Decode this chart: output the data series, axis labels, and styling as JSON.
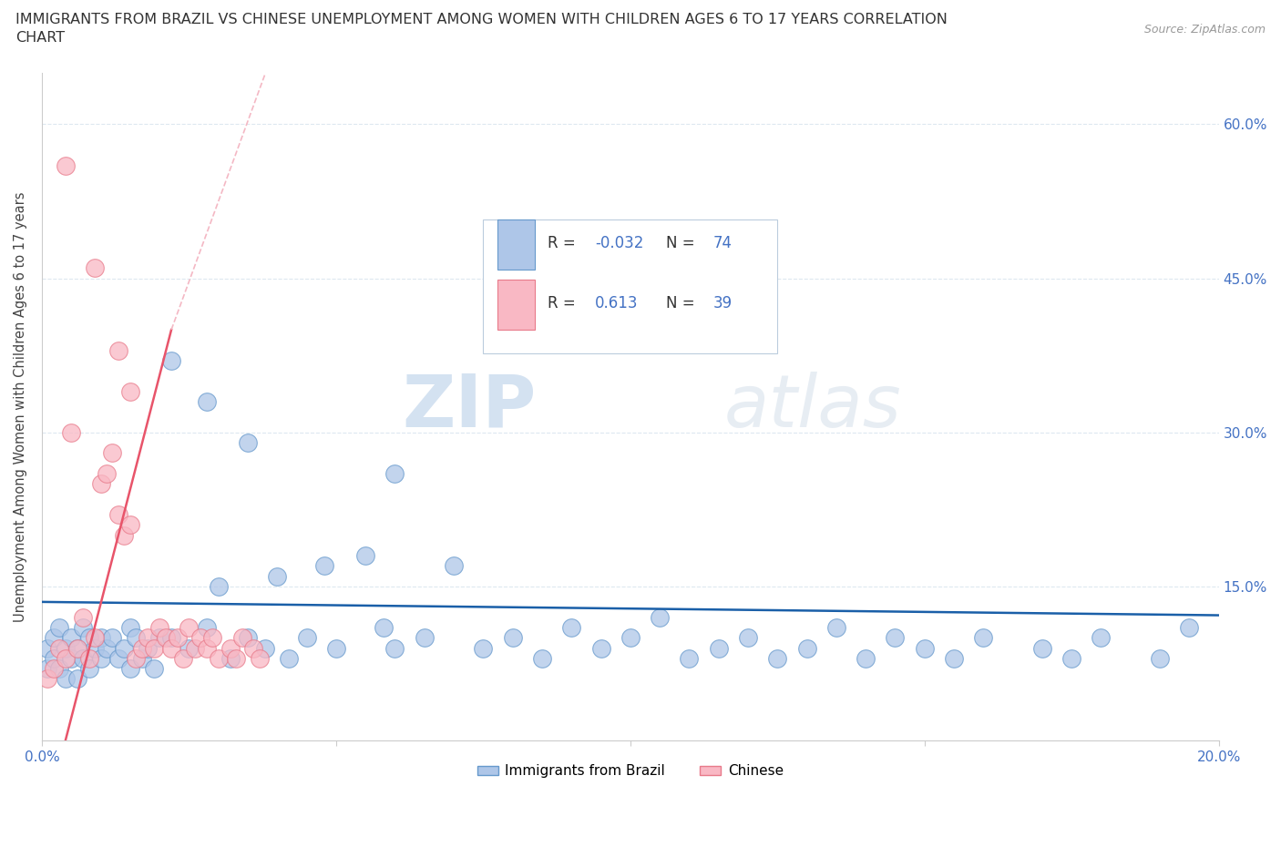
{
  "title_line1": "IMMIGRANTS FROM BRAZIL VS CHINESE UNEMPLOYMENT AMONG WOMEN WITH CHILDREN AGES 6 TO 17 YEARS CORRELATION",
  "title_line2": "CHART",
  "source": "Source: ZipAtlas.com",
  "ylabel": "Unemployment Among Women with Children Ages 6 to 17 years",
  "xlim": [
    0.0,
    0.2
  ],
  "ylim": [
    0.0,
    0.65
  ],
  "brazil_color": "#aec6e8",
  "brazil_edge": "#6699cc",
  "chinese_color": "#f9b8c4",
  "chinese_edge": "#e87a8a",
  "brazil_line_color": "#1a5fa8",
  "chinese_line_color": "#e8546a",
  "chinese_dashed_color": "#f4b8c4",
  "legend_brazil_R": "-0.032",
  "legend_brazil_N": "74",
  "legend_chinese_R": "0.613",
  "legend_chinese_N": "39",
  "watermark_zip": "ZIP",
  "watermark_atlas": "atlas",
  "background_color": "#ffffff",
  "grid_color": "#dde8f0",
  "title_color": "#333333",
  "axis_color": "#4472c4",
  "legend_R_color": "#4472c4",
  "legend_label_color": "#333333"
}
